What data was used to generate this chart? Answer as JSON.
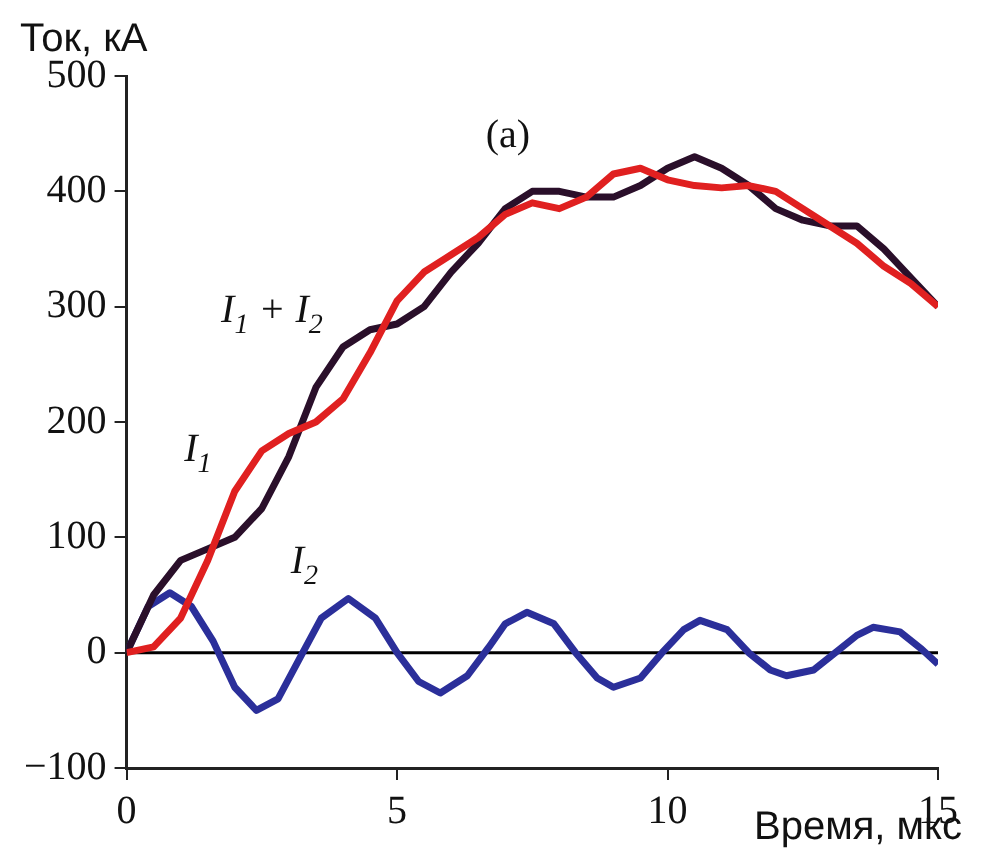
{
  "chart_data": {
    "type": "line",
    "xlabel": "Время, мкс",
    "ylabel": "Ток, кА",
    "xlim": [
      0,
      15
    ],
    "xticks": [
      0,
      5,
      10,
      15
    ],
    "ylim": [
      -100,
      500
    ],
    "yticks": [
      -100,
      0,
      100,
      200,
      300,
      400,
      500
    ],
    "grid": false,
    "legend": false,
    "marker": "none",
    "line_style": "solid",
    "series": [
      {
        "name": "I$_{1}$",
        "color": "#e02020",
        "x": [
          0,
          0.5,
          1,
          1.5,
          2,
          2.5,
          3,
          3.5,
          4,
          4.5,
          5,
          5.5,
          6,
          6.5,
          7,
          7.5,
          8,
          8.5,
          9,
          9.5,
          10,
          10.5,
          11,
          11.5,
          12,
          12.5,
          13,
          13.5,
          14,
          14.5,
          15
        ],
        "values": [
          0,
          5,
          30,
          80,
          140,
          175,
          190,
          200,
          220,
          260,
          305,
          330,
          345,
          360,
          380,
          390,
          385,
          395,
          415,
          420,
          410,
          405,
          403,
          405,
          400,
          385,
          370,
          355,
          335,
          320,
          300
        ]
      },
      {
        "name": "I$_{1}$ + I$_{2}$",
        "color": "#2a0f2a",
        "x": [
          0,
          0.5,
          1,
          1.5,
          2,
          2.5,
          3,
          3.5,
          4,
          4.5,
          5,
          5.5,
          6,
          6.5,
          7,
          7.5,
          8,
          8.5,
          9,
          9.5,
          10,
          10.5,
          11,
          11.5,
          12,
          12.5,
          13,
          13.5,
          14,
          14.5,
          15
        ],
        "values": [
          0,
          50,
          80,
          90,
          100,
          125,
          170,
          230,
          265,
          280,
          285,
          300,
          330,
          355,
          385,
          400,
          400,
          395,
          395,
          405,
          420,
          430,
          420,
          405,
          385,
          375,
          370,
          370,
          350,
          325,
          300
        ]
      },
      {
        "name": "I$_{2}$",
        "color": "#2b2f9a",
        "x": [
          0,
          0.4,
          0.8,
          1.2,
          1.6,
          2,
          2.4,
          2.8,
          3.2,
          3.6,
          4.1,
          4.6,
          5,
          5.4,
          5.8,
          6.3,
          6.7,
          7,
          7.4,
          7.9,
          8.3,
          8.7,
          9,
          9.5,
          9.9,
          10.3,
          10.6,
          11.1,
          11.5,
          11.9,
          12.2,
          12.7,
          13.1,
          13.5,
          13.8,
          14.3,
          14.7,
          15
        ],
        "values": [
          0,
          40,
          52,
          40,
          10,
          -30,
          -50,
          -40,
          -5,
          30,
          47,
          30,
          0,
          -25,
          -35,
          -20,
          5,
          25,
          35,
          25,
          0,
          -22,
          -30,
          -22,
          0,
          20,
          28,
          20,
          0,
          -15,
          -20,
          -15,
          0,
          15,
          22,
          18,
          3,
          -10
        ]
      }
    ],
    "ref_lines": [
      {
        "axis": "y",
        "value": 0,
        "color": "#000000"
      }
    ],
    "annotations": [
      "(a)"
    ]
  }
}
